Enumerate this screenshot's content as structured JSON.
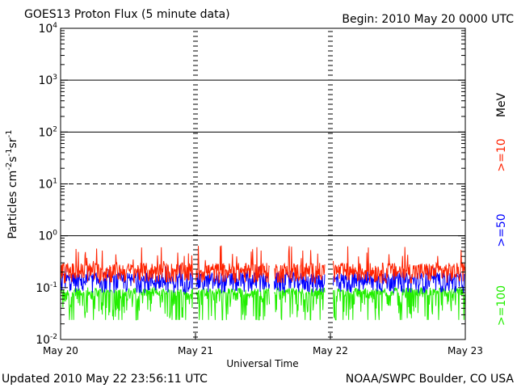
{
  "chart_data": {
    "type": "line",
    "title": "GOES13 Proton Flux (5 minute data)",
    "begin_label": "Begin: 2010 May 20 0000 UTC",
    "ylabel": "Particles cm⁻²s⁻¹sr⁻¹",
    "ylabel_base": "Particles cm",
    "ylabel_sup1": "-2",
    "ylabel_mid1": "s",
    "ylabel_sup2": "-1",
    "ylabel_mid2": "sr",
    "ylabel_sup3": "-1",
    "xlabel": "Universal Time",
    "y_scale": "log",
    "ylim": [
      0.01,
      10000
    ],
    "y_ticks": [
      {
        "base": "10",
        "exp": "-2",
        "value": 0.01
      },
      {
        "base": "10",
        "exp": "-1",
        "value": 0.1
      },
      {
        "base": "10",
        "exp": "0",
        "value": 1
      },
      {
        "base": "10",
        "exp": "1",
        "value": 10
      },
      {
        "base": "10",
        "exp": "2",
        "value": 100
      },
      {
        "base": "10",
        "exp": "3",
        "value": 1000
      },
      {
        "base": "10",
        "exp": "4",
        "value": 10000
      }
    ],
    "x_ticks": [
      "May 20",
      "May 21",
      "May 22",
      "May 23"
    ],
    "xlim_days": [
      0,
      3
    ],
    "thresholds": [
      {
        "value": 1,
        "style": "solid"
      },
      {
        "value": 10,
        "style": "dashed"
      },
      {
        "value": 100,
        "style": "solid"
      },
      {
        "value": 1000,
        "style": "solid"
      }
    ],
    "unit_label": "MeV",
    "series": [
      {
        "name": ">=10",
        "color": "#ff2200",
        "baseline": 0.2,
        "spike": 0.65
      },
      {
        "name": ">=50",
        "color": "#0000ff",
        "baseline": 0.13,
        "spike": 0.28
      },
      {
        "name": ">=100",
        "color": "#22ee00",
        "baseline": 0.085,
        "spike": 0.11
      }
    ],
    "data_gaps_days": [
      [
        0.98,
        1.0
      ],
      [
        1.55,
        1.58
      ],
      [
        1.96,
        2.02
      ]
    ],
    "grid": false,
    "legend_placement": "right, vertical"
  },
  "footer": {
    "updated": "Updated 2010 May 22 23:56:11 UTC",
    "source": "NOAA/SWPC Boulder, CO USA"
  }
}
